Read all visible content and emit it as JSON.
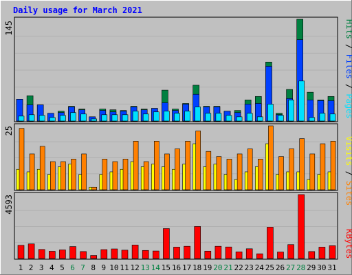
{
  "title": "Daily usage for March 2021",
  "colors": {
    "background": "#c0c0c0",
    "title": "#0000ff",
    "hits": "#008040",
    "files": "#0040ff",
    "pages": "#00e0ff",
    "visits": "#ffff00",
    "sites": "#ff8000",
    "kbytes": "#ff0000",
    "weekend": "#008040"
  },
  "chart_data": [
    {
      "type": "bar",
      "categories": [
        "1",
        "2",
        "3",
        "4",
        "5",
        "6",
        "7",
        "8",
        "9",
        "10",
        "11",
        "12",
        "13",
        "14",
        "15",
        "16",
        "17",
        "18",
        "19",
        "20",
        "21",
        "22",
        "23",
        "24",
        "25",
        "26",
        "27",
        "28",
        "29",
        "30",
        "31"
      ],
      "weekend_days": [
        "6",
        "7",
        "13",
        "14",
        "20",
        "21",
        "27",
        "28"
      ],
      "y_max_label": "145",
      "ylim": [
        0,
        145
      ],
      "series": [
        {
          "name": "Hits",
          "values": [
            31,
            36,
            23,
            11,
            14,
            21,
            17,
            6,
            17,
            16,
            15,
            21,
            17,
            18,
            44,
            17,
            25,
            51,
            21,
            21,
            14,
            15,
            30,
            35,
            84,
            11,
            45,
            145,
            41,
            30,
            35
          ]
        },
        {
          "name": "Files",
          "values": [
            31,
            23,
            23,
            11,
            12,
            20,
            16,
            6,
            15,
            13,
            14,
            20,
            16,
            18,
            26,
            15,
            24,
            38,
            20,
            20,
            14,
            12,
            24,
            25,
            78,
            9,
            32,
            116,
            30,
            29,
            29
          ]
        },
        {
          "name": "Pages",
          "values": [
            7,
            9,
            8,
            5,
            8,
            12,
            10,
            3,
            9,
            9,
            9,
            14,
            10,
            13,
            14,
            11,
            14,
            20,
            11,
            11,
            8,
            6,
            11,
            6,
            24,
            8,
            30,
            57,
            5,
            11,
            10
          ]
        }
      ]
    },
    {
      "type": "bar",
      "categories": [
        "1",
        "2",
        "3",
        "4",
        "5",
        "6",
        "7",
        "8",
        "9",
        "10",
        "11",
        "12",
        "13",
        "14",
        "15",
        "16",
        "17",
        "18",
        "19",
        "20",
        "21",
        "22",
        "23",
        "24",
        "25",
        "26",
        "27",
        "28",
        "29",
        "30",
        "31"
      ],
      "y_max_label": "25",
      "ylim": [
        0,
        25
      ],
      "series": [
        {
          "name": "Visits",
          "values": [
            8,
            7,
            8,
            6,
            9,
            10,
            6,
            1,
            6,
            7,
            8,
            11,
            9,
            10,
            9,
            8,
            10,
            18,
            9,
            10,
            6,
            4,
            7,
            9,
            18,
            6,
            7,
            7,
            4,
            6,
            7
          ]
        },
        {
          "name": "Sites",
          "values": [
            24,
            14,
            17,
            11,
            11,
            12,
            14,
            1,
            12,
            11,
            12,
            19,
            11,
            19,
            14,
            16,
            19,
            23,
            15,
            13,
            12,
            14,
            16,
            12,
            25,
            13,
            16,
            20,
            14,
            18,
            19
          ]
        }
      ]
    },
    {
      "type": "bar",
      "categories": [
        "1",
        "2",
        "3",
        "4",
        "5",
        "6",
        "7",
        "8",
        "9",
        "10",
        "11",
        "12",
        "13",
        "14",
        "15",
        "16",
        "17",
        "18",
        "19",
        "20",
        "21",
        "22",
        "23",
        "24",
        "25",
        "26",
        "27",
        "28",
        "29",
        "30",
        "31"
      ],
      "y_max_label": "4593",
      "ylim": [
        0,
        4593
      ],
      "series": [
        {
          "name": "KBytes",
          "values": [
            950,
            1050,
            650,
            520,
            620,
            860,
            500,
            220,
            640,
            690,
            600,
            970,
            580,
            540,
            2150,
            820,
            880,
            2300,
            530,
            880,
            830,
            480,
            700,
            340,
            2250,
            470,
            1000,
            4593,
            500,
            820,
            920
          ]
        }
      ]
    }
  ],
  "legend_right": {
    "top": [
      {
        "text": "Hits",
        "color": "#008040"
      },
      {
        "text": " / ",
        "color": "#000000"
      },
      {
        "text": "Files",
        "color": "#0040ff"
      },
      {
        "text": " / ",
        "color": "#000000"
      },
      {
        "text": "Pages",
        "color": "#00e0ff"
      }
    ],
    "middle": [
      {
        "text": "Visits",
        "color": "#ffff00"
      },
      {
        "text": " / ",
        "color": "#000000"
      },
      {
        "text": "Sites",
        "color": "#ff8000"
      }
    ],
    "bottom": [
      {
        "text": "KBytes",
        "color": "#ff0000"
      }
    ]
  }
}
